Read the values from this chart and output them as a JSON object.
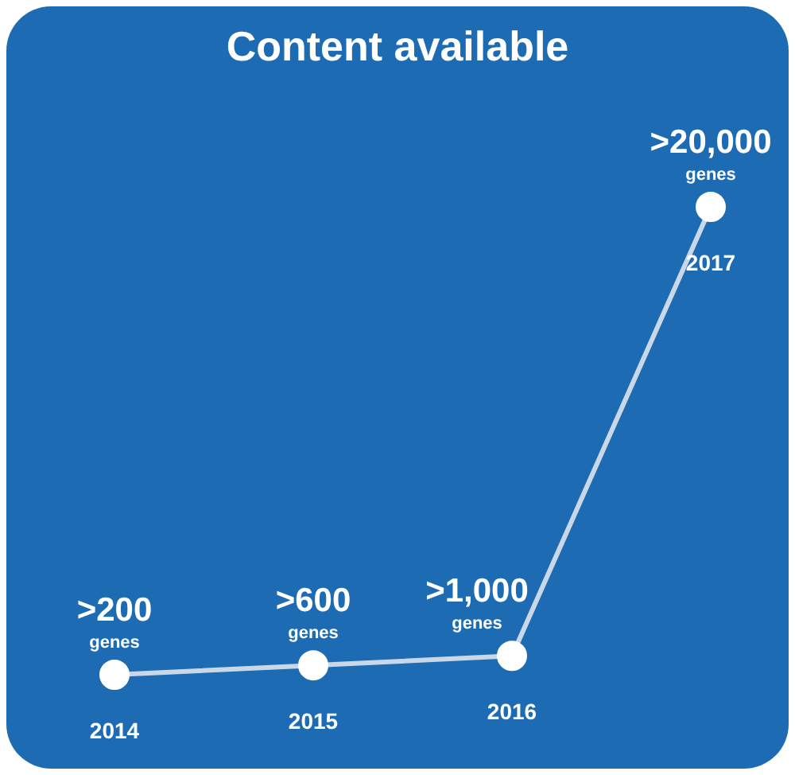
{
  "chart_data": {
    "type": "line",
    "title": "Content available",
    "categories": [
      "2014",
      "2015",
      "2016",
      "2017"
    ],
    "series": [
      {
        "color": "#c9d8e8",
        "values": [
          200,
          600,
          1000,
          20000
        ],
        "value_labels": [
          ">200",
          ">600",
          ">1,000",
          ">20,000"
        ]
      }
    ],
    "annotations": [
      "genes",
      "genes",
      "genes",
      "genes"
    ],
    "marker": "circle",
    "line_style": "solid"
  }
}
